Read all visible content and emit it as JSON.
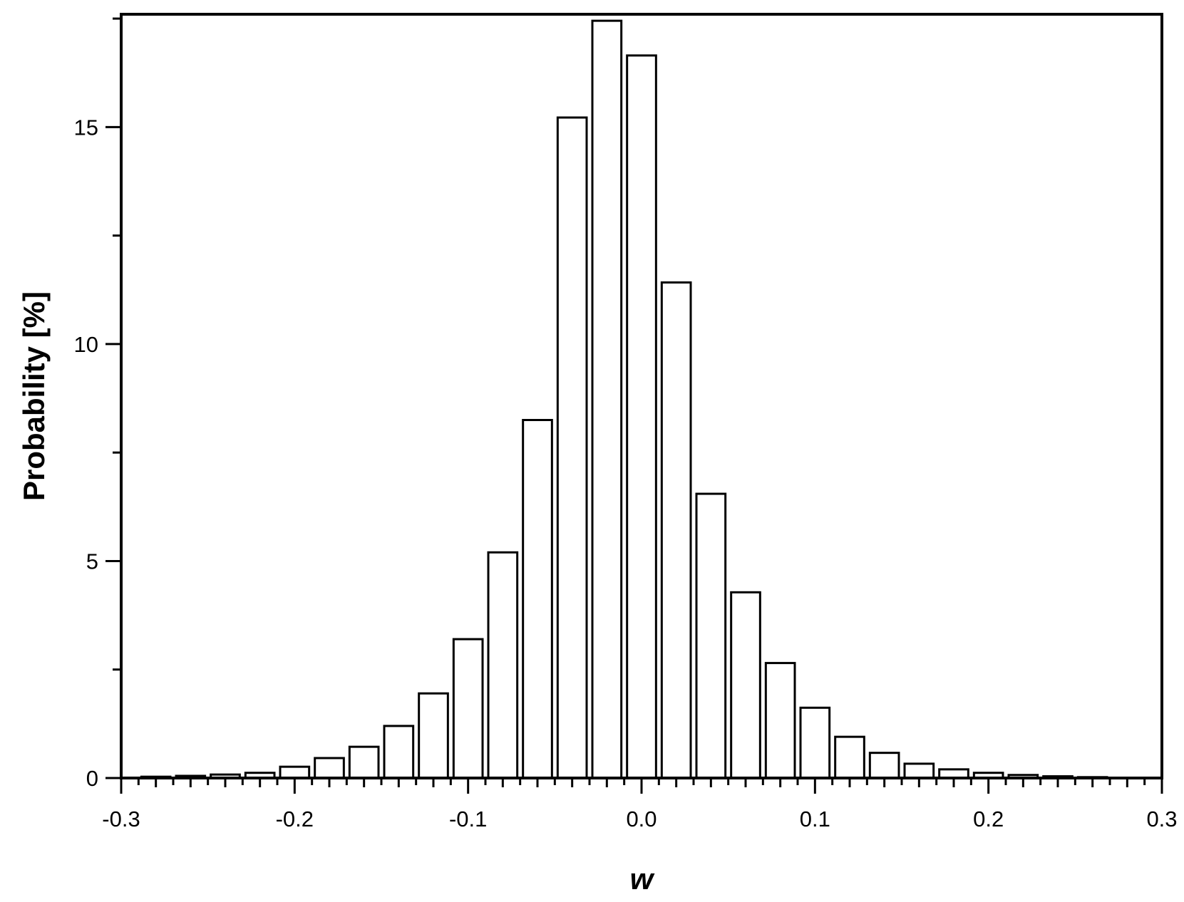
{
  "chart_data": {
    "type": "bar",
    "xlabel": "w",
    "ylabel": "Probability [%]",
    "xlim": [
      -0.3,
      0.3
    ],
    "ylim": [
      0,
      17.6
    ],
    "x_ticks": [
      "-0.3",
      "-0.2",
      "-0.1",
      "0.0",
      "0.1",
      "0.2",
      "0.3"
    ],
    "y_ticks": [
      "0",
      "5",
      "10",
      "15"
    ],
    "bin_width": 0.02,
    "x": [
      -0.28,
      -0.26,
      -0.24,
      -0.22,
      -0.2,
      -0.18,
      -0.16,
      -0.14,
      -0.12,
      -0.1,
      -0.08,
      -0.06,
      -0.04,
      -0.02,
      0.0,
      0.02,
      0.04,
      0.06,
      0.08,
      0.1,
      0.12,
      0.14,
      0.16,
      0.18,
      0.2,
      0.22,
      0.24,
      0.26
    ],
    "values": [
      0.03,
      0.05,
      0.08,
      0.12,
      0.26,
      0.46,
      0.72,
      1.2,
      1.95,
      3.2,
      5.2,
      8.25,
      15.22,
      17.45,
      16.65,
      11.42,
      6.55,
      4.28,
      2.65,
      1.62,
      0.95,
      0.58,
      0.33,
      0.2,
      0.12,
      0.07,
      0.04,
      0.02
    ],
    "grid": false,
    "legend": "none",
    "colors": {
      "bar_fill": "#ffffff",
      "bar_stroke": "#000000",
      "axis": "#000000"
    }
  }
}
